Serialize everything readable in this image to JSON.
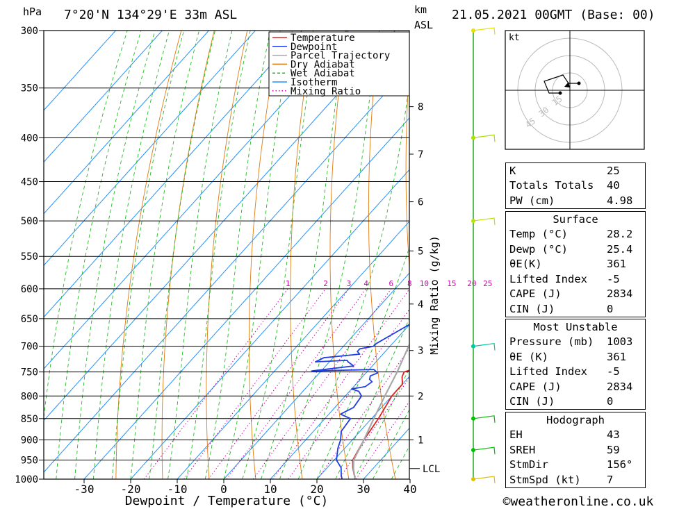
{
  "header": {
    "pressure_unit": "hPa",
    "location": "7°20'N  134°29'E  33m  ASL",
    "height_unit": "km",
    "height_unit2": "ASL",
    "datetime": "21.05.2021  00GMT  (Base: 00)"
  },
  "footer": {
    "credit": "©weatheronline.co.uk"
  },
  "chart_data": {
    "type": "line",
    "xlabel": "Dewpoint / Temperature (°C)",
    "ylabel": "hPa",
    "right_label": "Mixing Ratio (g/kg)",
    "x_ticks": [
      -30,
      -20,
      -10,
      0,
      10,
      20,
      30,
      40
    ],
    "x_tick_labels": [
      "-30",
      "-20",
      "-10",
      "0",
      "10",
      "20",
      "30",
      "40"
    ],
    "pressure_levels": [
      300,
      350,
      400,
      450,
      500,
      550,
      600,
      650,
      700,
      750,
      800,
      850,
      900,
      950,
      1000
    ],
    "pressure_labels": [
      "300",
      "350",
      "400",
      "450",
      "500",
      "550",
      "600",
      "650",
      "700",
      "750",
      "800",
      "850",
      "900",
      "950",
      "1000"
    ],
    "height_ticks": [
      {
        "label": "1",
        "p": 900
      },
      {
        "label": "2",
        "p": 800
      },
      {
        "label": "3",
        "p": 708
      },
      {
        "label": "4",
        "p": 625
      },
      {
        "label": "5",
        "p": 542
      },
      {
        "label": "6",
        "p": 475
      },
      {
        "label": "7",
        "p": 418
      },
      {
        "label": "8",
        "p": 368
      }
    ],
    "lcl": {
      "label": "LCL",
      "p": 972
    },
    "mixing_ratio_labels": [
      "1",
      "2",
      "3",
      "4",
      "6",
      "8",
      "10",
      "15",
      "20",
      "25"
    ],
    "legend": [
      {
        "name": "Temperature",
        "color": "#e02020",
        "style": "solid"
      },
      {
        "name": "Dewpoint",
        "color": "#1f3ee0",
        "style": "solid"
      },
      {
        "name": "Parcel Trajectory",
        "color": "#a8a8a8",
        "style": "solid"
      },
      {
        "name": "Dry Adiabat",
        "color": "#e07a10",
        "style": "solid"
      },
      {
        "name": "Wet Adiabat",
        "color": "#22bb22",
        "style": "dashed"
      },
      {
        "name": "Isotherm",
        "color": "#1e90ff",
        "style": "solid"
      },
      {
        "name": "Mixing Ratio",
        "color": "#cc00aa",
        "style": "dotted"
      }
    ],
    "series": [
      {
        "name": "Temperature",
        "points": [
          [
            28.2,
            1000
          ],
          [
            25.5,
            970
          ],
          [
            24,
            950
          ],
          [
            22.5,
            900
          ],
          [
            21.5,
            850
          ],
          [
            20,
            800
          ],
          [
            20,
            790
          ],
          [
            20,
            775
          ],
          [
            18.5,
            760
          ],
          [
            18,
            750
          ],
          [
            20.5,
            740
          ],
          [
            19.8,
            715
          ],
          [
            18.5,
            700
          ],
          [
            15.5,
            650
          ],
          [
            12,
            600
          ],
          [
            10.5,
            580
          ],
          [
            8.5,
            550
          ],
          [
            5,
            500
          ],
          [
            3,
            470
          ],
          [
            2,
            450
          ],
          [
            0,
            430
          ],
          [
            -5.5,
            400
          ],
          [
            -11,
            370
          ],
          [
            -13,
            362
          ],
          [
            -16,
            320
          ],
          [
            -16.5,
            310
          ]
        ]
      },
      {
        "name": "Dewpoint",
        "points": [
          [
            25.4,
            1000
          ],
          [
            24.5,
            990
          ],
          [
            23,
            970
          ],
          [
            20.5,
            950
          ],
          [
            18.5,
            920
          ],
          [
            17.5,
            900
          ],
          [
            16,
            880
          ],
          [
            15.5,
            850
          ],
          [
            12.5,
            840
          ],
          [
            14,
            825
          ],
          [
            13.5,
            800
          ],
          [
            12,
            790
          ],
          [
            10,
            785
          ],
          [
            12.5,
            780
          ],
          [
            13,
            770
          ],
          [
            12,
            765
          ],
          [
            11.5,
            758
          ],
          [
            12.5,
            752
          ],
          [
            11,
            745
          ],
          [
            -2,
            748
          ],
          [
            6,
            738
          ],
          [
            4,
            730
          ],
          [
            3.5,
            727
          ],
          [
            -3,
            730
          ],
          [
            -2,
            722
          ],
          [
            5,
            715
          ],
          [
            4,
            710
          ],
          [
            4,
            705
          ],
          [
            6.5,
            700
          ],
          [
            6.5,
            695
          ],
          [
            11,
            650
          ],
          [
            11,
            640
          ],
          [
            10,
            620
          ],
          [
            8,
            600
          ],
          [
            6,
            580
          ],
          [
            4,
            550
          ],
          [
            -0.5,
            500
          ],
          [
            -4.5,
            470
          ],
          [
            -7.5,
            460
          ],
          [
            -7,
            450
          ],
          [
            -8,
            440
          ],
          [
            -9,
            420
          ],
          [
            -11,
            400
          ],
          [
            -12,
            380
          ],
          [
            -15,
            365
          ],
          [
            -19,
            355
          ],
          [
            -28,
            300
          ]
        ]
      },
      {
        "name": "Parcel Trajectory",
        "points": [
          [
            28.2,
            1000
          ],
          [
            25.8,
            972
          ],
          [
            24.2,
            950
          ],
          [
            22.5,
            900
          ],
          [
            20.5,
            850
          ],
          [
            18.5,
            800
          ],
          [
            16.5,
            750
          ],
          [
            14,
            700
          ],
          [
            11.5,
            650
          ],
          [
            8.5,
            600
          ],
          [
            5.5,
            550
          ],
          [
            2,
            500
          ],
          [
            -2,
            450
          ],
          [
            -7,
            400
          ],
          [
            -13,
            350
          ],
          [
            -20.5,
            300
          ]
        ]
      }
    ],
    "winds": [
      {
        "p": 300,
        "color": "#e8e000"
      },
      {
        "p": 400,
        "color": "#a8e000"
      },
      {
        "p": 500,
        "color": "#c0e000"
      },
      {
        "p": 700,
        "color": "#00c8a0"
      },
      {
        "p": 850,
        "color": "#00c000"
      },
      {
        "p": 925,
        "color": "#00c000"
      },
      {
        "p": 1000,
        "color": "#e0c000"
      }
    ],
    "grid": true
  },
  "hodograph": {
    "unit": "kt",
    "ring_labels": [
      "15",
      "30",
      "45"
    ]
  },
  "tables": {
    "indices": [
      {
        "k": "K",
        "v": "25"
      },
      {
        "k": "Totals Totals",
        "v": "40"
      },
      {
        "k": "PW (cm)",
        "v": "4.98"
      }
    ],
    "surface": {
      "title": "Surface",
      "rows": [
        {
          "k": "Temp (°C)",
          "v": "28.2"
        },
        {
          "k": "Dewp (°C)",
          "v": "25.4"
        },
        {
          "k": "θE(K)",
          "v": "361"
        },
        {
          "k": "Lifted Index",
          "v": "-5"
        },
        {
          "k": "CAPE (J)",
          "v": "2834"
        },
        {
          "k": "CIN (J)",
          "v": "0"
        }
      ]
    },
    "most_unstable": {
      "title": "Most Unstable",
      "rows": [
        {
          "k": "Pressure (mb)",
          "v": "1003"
        },
        {
          "k": "θE (K)",
          "v": "361"
        },
        {
          "k": "Lifted Index",
          "v": "-5"
        },
        {
          "k": "CAPE (J)",
          "v": "2834"
        },
        {
          "k": "CIN (J)",
          "v": "0"
        }
      ]
    },
    "hodograph": {
      "title": "Hodograph",
      "rows": [
        {
          "k": "EH",
          "v": "43"
        },
        {
          "k": "SREH",
          "v": "59"
        },
        {
          "k": "StmDir",
          "v": "156°"
        },
        {
          "k": "StmSpd (kt)",
          "v": "7"
        }
      ]
    }
  }
}
